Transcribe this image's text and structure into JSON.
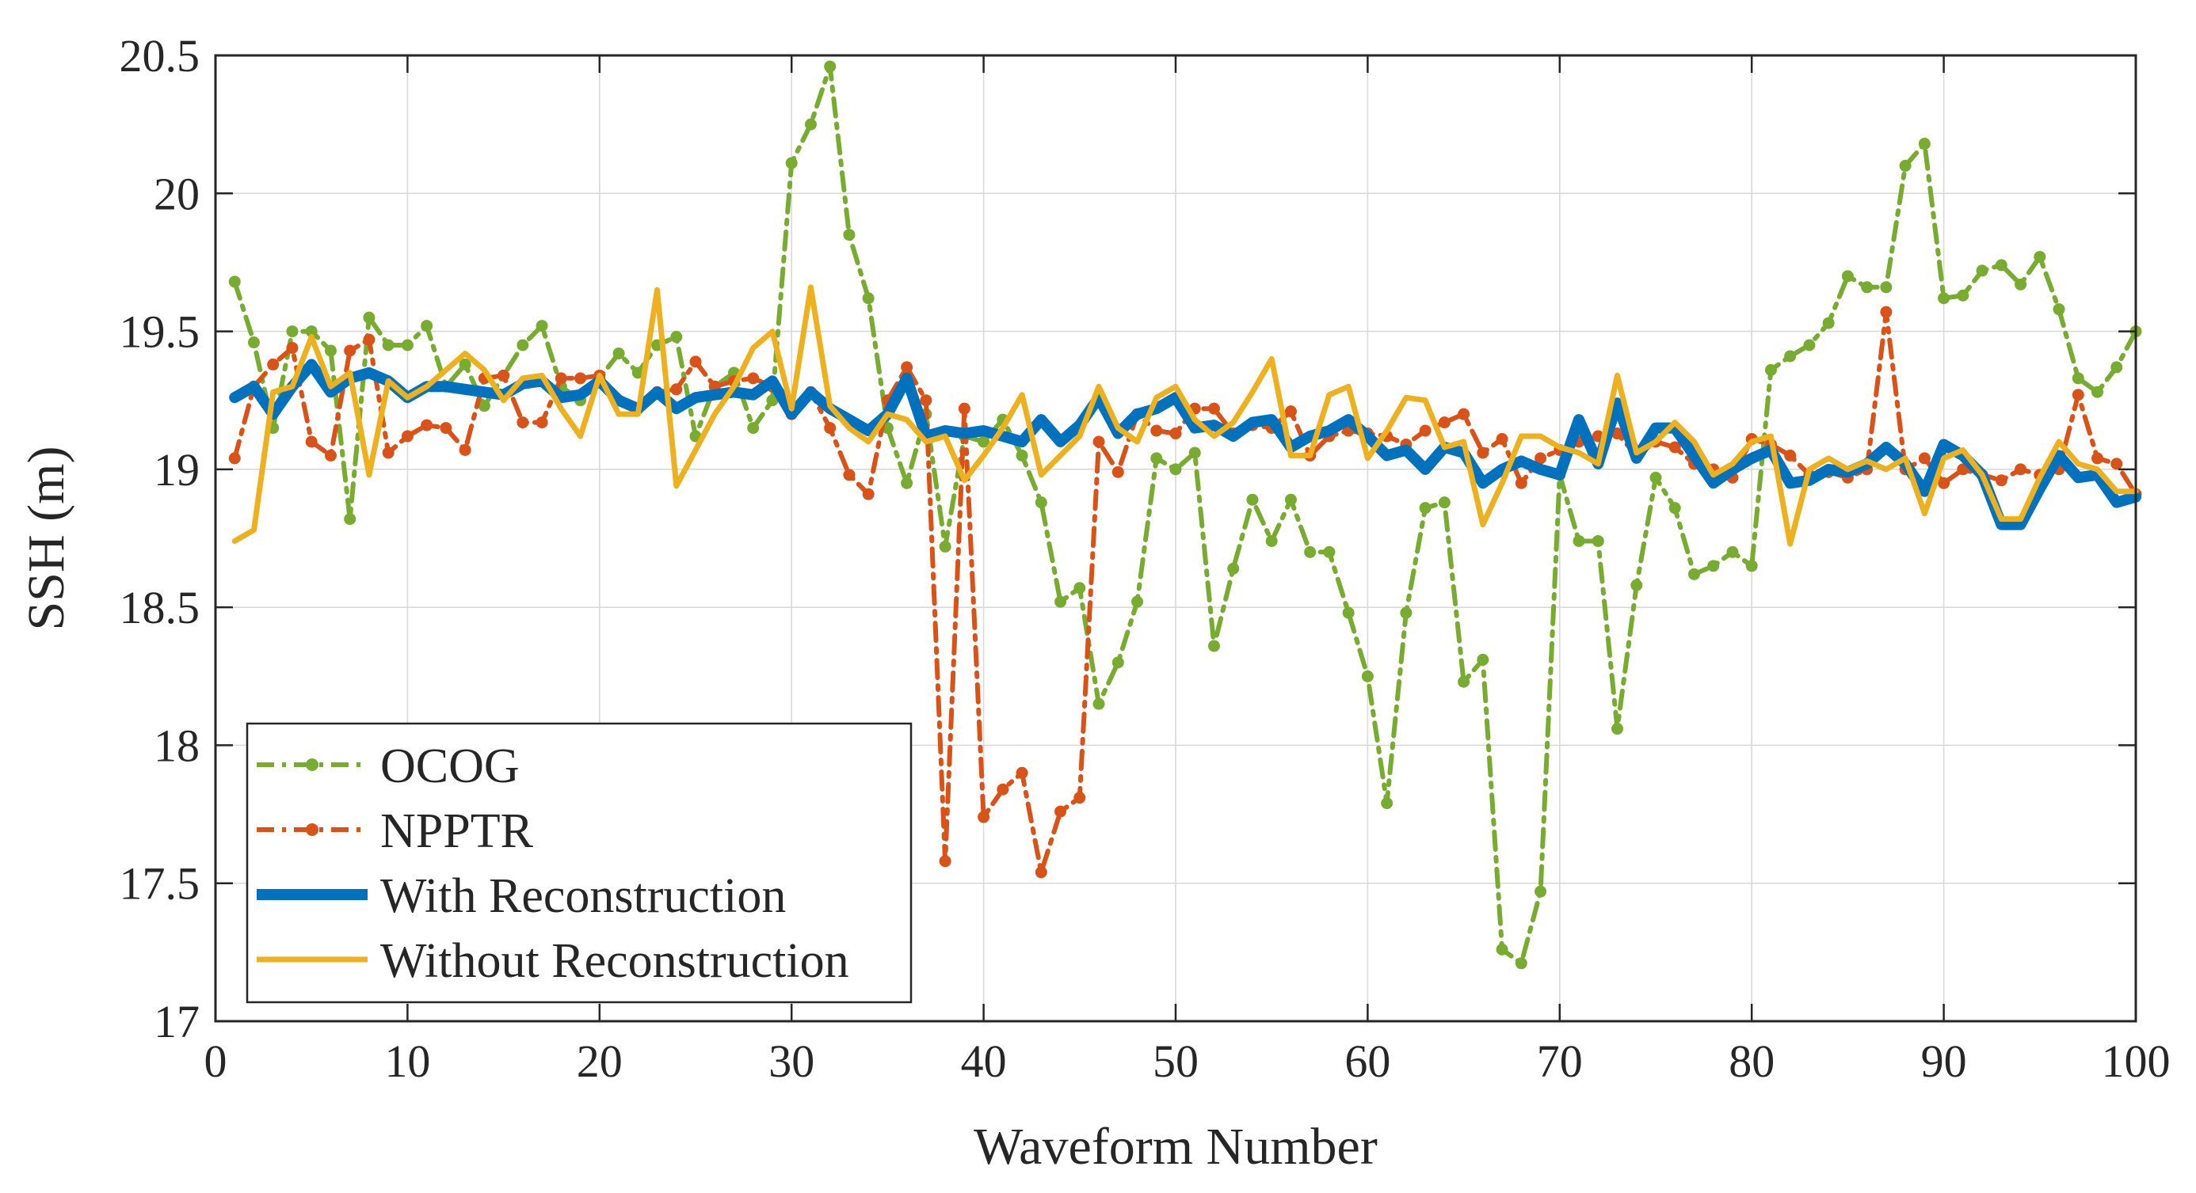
{
  "chart_data": {
    "type": "line",
    "title": "",
    "xlabel": "Waveform Number",
    "ylabel": "SSH (m)",
    "xlim": [
      0,
      100
    ],
    "ylim": [
      17,
      20.5
    ],
    "xticks": [
      "0",
      "10",
      "20",
      "30",
      "40",
      "50",
      "60",
      "70",
      "80",
      "90",
      "100"
    ],
    "yticks": [
      "17",
      "17.5",
      "18",
      "18.5",
      "19",
      "19.5",
      "20",
      "20.5"
    ],
    "grid": true,
    "legend_location": "bottom-left",
    "series": [
      {
        "name": "OCOG",
        "color": "#77AC30",
        "style": "dash-dot-marker",
        "values": [
          19.68,
          19.46,
          19.15,
          19.5,
          19.5,
          19.43,
          18.82,
          19.55,
          19.45,
          19.45,
          19.52,
          19.3,
          19.38,
          19.23,
          19.34,
          19.45,
          19.52,
          19.3,
          19.25,
          19.33,
          19.42,
          19.35,
          19.45,
          19.48,
          19.12,
          19.3,
          19.35,
          19.15,
          19.25,
          20.11,
          20.25,
          20.46,
          19.85,
          19.62,
          19.15,
          18.95,
          19.2,
          18.72,
          19.12,
          19.1,
          19.18,
          19.05,
          18.88,
          18.52,
          18.57,
          18.15,
          18.3,
          18.52,
          19.04,
          19.0,
          19.06,
          18.36,
          18.64,
          18.89,
          18.74,
          18.89,
          18.7,
          18.7,
          18.48,
          18.25,
          17.79,
          18.48,
          18.86,
          18.88,
          18.23,
          18.31,
          17.26,
          17.21,
          17.47,
          18.98,
          18.74,
          18.74,
          18.06,
          18.58,
          18.97,
          18.86,
          18.62,
          18.65,
          18.7,
          18.65,
          19.36,
          19.41,
          19.45,
          19.53,
          19.7,
          19.66,
          19.66,
          20.1,
          20.18,
          19.62,
          19.63,
          19.72,
          19.74,
          19.67,
          19.77,
          19.58,
          19.33,
          19.28,
          19.37,
          19.5
        ]
      },
      {
        "name": "NPPTR",
        "color": "#D95319",
        "style": "dash-dot-marker",
        "values": [
          19.04,
          19.3,
          19.38,
          19.44,
          19.1,
          19.05,
          19.43,
          19.47,
          19.06,
          19.12,
          19.16,
          19.15,
          19.07,
          19.33,
          19.34,
          19.17,
          19.17,
          19.33,
          19.33,
          19.34,
          19.25,
          19.22,
          19.28,
          19.29,
          19.39,
          19.3,
          19.32,
          19.33,
          19.3,
          19.2,
          19.28,
          19.15,
          18.98,
          18.91,
          19.25,
          19.37,
          19.25,
          17.58,
          19.22,
          17.74,
          17.84,
          17.9,
          17.54,
          17.76,
          17.81,
          19.1,
          18.99,
          19.2,
          19.14,
          19.13,
          19.22,
          19.22,
          19.13,
          19.16,
          19.15,
          19.21,
          19.05,
          19.12,
          19.14,
          19.13,
          19.12,
          19.09,
          19.14,
          19.17,
          19.2,
          19.06,
          19.11,
          18.95,
          19.04,
          19.07,
          19.1,
          19.12,
          19.13,
          19.05,
          19.1,
          19.08,
          19.02,
          19.0,
          18.97,
          19.11,
          19.09,
          19.05,
          18.98,
          18.99,
          18.97,
          19.0,
          19.57,
          19.0,
          19.04,
          18.95,
          19.0,
          18.98,
          18.96,
          19.0,
          18.98,
          19.0,
          19.27,
          19.04,
          19.02,
          18.91
        ]
      },
      {
        "name": "With Reconstruction",
        "color": "#0072BD",
        "style": "solid-thick",
        "values": [
          19.26,
          19.3,
          19.2,
          19.3,
          19.38,
          19.28,
          19.33,
          19.35,
          19.32,
          19.26,
          19.3,
          19.3,
          19.29,
          19.28,
          19.27,
          19.31,
          19.32,
          19.26,
          19.27,
          19.32,
          19.25,
          19.22,
          19.28,
          19.22,
          19.26,
          19.27,
          19.28,
          19.27,
          19.32,
          19.2,
          19.28,
          19.22,
          19.18,
          19.14,
          19.2,
          19.33,
          19.12,
          19.14,
          19.13,
          19.14,
          19.12,
          19.1,
          19.18,
          19.1,
          19.16,
          19.26,
          19.13,
          19.2,
          19.22,
          19.26,
          19.15,
          19.16,
          19.12,
          19.17,
          19.18,
          19.08,
          19.12,
          19.14,
          19.18,
          19.12,
          19.05,
          19.07,
          19.0,
          19.08,
          19.06,
          18.95,
          19.0,
          19.03,
          19.0,
          18.98,
          19.18,
          19.02,
          19.24,
          19.04,
          19.15,
          19.15,
          19.05,
          18.95,
          19.0,
          19.04,
          19.07,
          18.95,
          18.96,
          19.0,
          18.99,
          19.02,
          19.08,
          19.02,
          18.92,
          19.09,
          19.05,
          18.98,
          18.8,
          18.8,
          18.93,
          19.05,
          18.97,
          18.98,
          18.88,
          18.9
        ]
      },
      {
        "name": "Without Reconstruction",
        "color": "#EDB120",
        "style": "solid",
        "values": [
          18.74,
          18.78,
          19.28,
          19.3,
          19.48,
          19.3,
          19.35,
          18.98,
          19.32,
          19.26,
          19.3,
          19.36,
          19.42,
          19.36,
          19.25,
          19.33,
          19.34,
          19.22,
          19.12,
          19.34,
          19.2,
          19.2,
          19.65,
          18.94,
          19.07,
          19.2,
          19.3,
          19.44,
          19.5,
          19.22,
          19.66,
          19.23,
          19.15,
          19.1,
          19.2,
          19.18,
          19.1,
          19.12,
          18.96,
          19.05,
          19.15,
          19.27,
          18.98,
          19.05,
          19.12,
          19.3,
          19.15,
          19.1,
          19.26,
          19.3,
          19.18,
          19.12,
          19.17,
          19.28,
          19.4,
          19.05,
          19.05,
          19.27,
          19.3,
          19.04,
          19.14,
          19.26,
          19.25,
          19.08,
          19.1,
          18.8,
          18.95,
          19.12,
          19.12,
          19.08,
          19.06,
          19.02,
          19.34,
          19.06,
          19.1,
          19.17,
          19.1,
          18.98,
          19.02,
          19.1,
          19.12,
          18.73,
          19.0,
          19.04,
          19.0,
          19.03,
          19.0,
          19.04,
          18.84,
          19.04,
          19.07,
          18.98,
          18.82,
          18.82,
          18.97,
          19.1,
          19.02,
          19.0,
          18.92,
          18.92
        ]
      }
    ]
  }
}
